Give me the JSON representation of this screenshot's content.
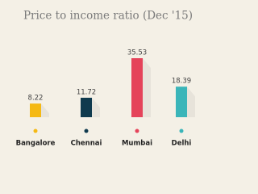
{
  "chart_data": {
    "type": "bar",
    "title": "Price to income ratio (Dec '15)",
    "categories": [
      "Bangalore",
      "Chennai",
      "Mumbai",
      "Delhi"
    ],
    "values": [
      8.22,
      11.72,
      35.53,
      18.39
    ],
    "colors": [
      "#f5b914",
      "#0f3a4e",
      "#e5435a",
      "#3ab5b9"
    ]
  }
}
